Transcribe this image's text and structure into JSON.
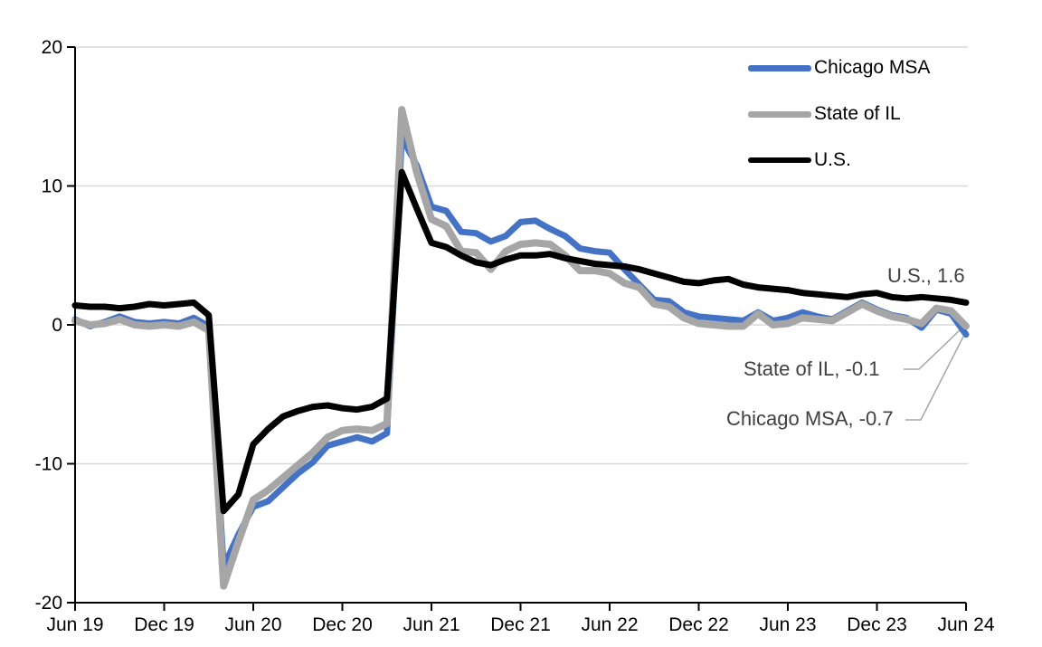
{
  "chart_data": {
    "type": "line",
    "title": "",
    "xlabel": "",
    "ylabel": "",
    "ylim": [
      -20,
      20
    ],
    "y_ticks": [
      20,
      10,
      0,
      -10,
      -20
    ],
    "x_tick_labels": [
      "Jun 19",
      "Dec 19",
      "Jun 20",
      "Dec 20",
      "Jun 21",
      "Dec 21",
      "Jun 22",
      "Dec 22",
      "Jun 23",
      "Dec 23",
      "Jun 24"
    ],
    "grid": "horizontal",
    "gridline_color": "#D9D9D9",
    "axis_color": "#000000",
    "legend_position": "top-right-inside",
    "months": [
      "Jun 19",
      "Jul 19",
      "Aug 19",
      "Sep 19",
      "Oct 19",
      "Nov 19",
      "Dec 19",
      "Jan 20",
      "Feb 20",
      "Mar 20",
      "Apr 20",
      "May 20",
      "Jun 20",
      "Jul 20",
      "Aug 20",
      "Sep 20",
      "Oct 20",
      "Nov 20",
      "Dec 20",
      "Jan 21",
      "Feb 21",
      "Mar 21",
      "Apr 21",
      "May 21",
      "Jun 21",
      "Jul 21",
      "Aug 21",
      "Sep 21",
      "Oct 21",
      "Nov 21",
      "Dec 21",
      "Jan 22",
      "Feb 22",
      "Mar 22",
      "Apr 22",
      "May 22",
      "Jun 22",
      "Jul 22",
      "Aug 22",
      "Sep 22",
      "Oct 22",
      "Nov 22",
      "Dec 22",
      "Jan 23",
      "Feb 23",
      "Mar 23",
      "Apr 23",
      "May 23",
      "Jun 23",
      "Jul 23",
      "Aug 23",
      "Sep 23",
      "Oct 23",
      "Nov 23",
      "Dec 23",
      "Jan 24",
      "Feb 24",
      "Mar 24",
      "Apr 24",
      "May 24",
      "Jun 24"
    ],
    "series": [
      {
        "name": "Chicago MSA",
        "color": "#4472C4",
        "stroke_width": 7,
        "values": [
          0.4,
          -0.1,
          0.2,
          0.6,
          0.2,
          0.1,
          0.2,
          0.1,
          0.5,
          -0.1,
          -17.4,
          -15.1,
          -13.1,
          -12.7,
          -11.7,
          -10.7,
          -9.9,
          -8.7,
          -8.4,
          -8.1,
          -8.4,
          -7.8,
          13.5,
          11.5,
          8.5,
          8.2,
          6.7,
          6.6,
          6.0,
          6.4,
          7.4,
          7.5,
          6.9,
          6.4,
          5.5,
          5.3,
          5.2,
          4.0,
          2.9,
          1.8,
          1.7,
          0.9,
          0.6,
          0.5,
          0.4,
          0.3,
          0.9,
          0.3,
          0.5,
          0.9,
          0.6,
          0.4,
          1.0,
          1.6,
          1.1,
          0.7,
          0.5,
          -0.2,
          1.1,
          0.8,
          -0.7
        ]
      },
      {
        "name": "State of IL",
        "color": "#A6A6A6",
        "stroke_width": 8,
        "values": [
          0.3,
          0.0,
          0.1,
          0.4,
          0.0,
          -0.1,
          0.0,
          -0.1,
          0.2,
          -0.4,
          -18.8,
          -15.6,
          -12.6,
          -11.9,
          -11.0,
          -10.1,
          -9.2,
          -8.1,
          -7.6,
          -7.5,
          -7.6,
          -7.1,
          15.5,
          11.0,
          7.6,
          7.1,
          5.3,
          5.2,
          4.0,
          5.3,
          5.8,
          5.9,
          5.8,
          5.0,
          3.9,
          3.9,
          3.7,
          3.0,
          2.7,
          1.5,
          1.3,
          0.5,
          0.1,
          0.0,
          -0.1,
          -0.1,
          0.8,
          0.0,
          0.1,
          0.5,
          0.4,
          0.3,
          0.9,
          1.5,
          1.0,
          0.6,
          0.4,
          0.1,
          1.2,
          1.0,
          -0.1
        ]
      },
      {
        "name": "U.S.",
        "color": "#000000",
        "stroke_width": 7,
        "values": [
          1.4,
          1.3,
          1.3,
          1.2,
          1.3,
          1.5,
          1.4,
          1.5,
          1.6,
          0.7,
          -13.4,
          -12.2,
          -8.6,
          -7.5,
          -6.6,
          -6.2,
          -5.9,
          -5.8,
          -6.0,
          -6.1,
          -5.9,
          -5.3,
          11.0,
          8.4,
          5.9,
          5.6,
          5.0,
          4.5,
          4.3,
          4.7,
          5.0,
          5.0,
          5.1,
          4.8,
          4.6,
          4.4,
          4.3,
          4.2,
          4.0,
          3.7,
          3.4,
          3.1,
          3.0,
          3.2,
          3.3,
          2.9,
          2.7,
          2.6,
          2.5,
          2.3,
          2.2,
          2.1,
          2.0,
          2.2,
          2.3,
          2.0,
          1.9,
          2.0,
          1.9,
          1.8,
          1.6
        ]
      }
    ],
    "annotations": [
      {
        "series": "U.S.",
        "value": 1.6,
        "label": "U.S., 1.6"
      },
      {
        "series": "State of IL",
        "value": -0.1,
        "label": "State of IL, -0.1"
      },
      {
        "series": "Chicago MSA",
        "value": -0.7,
        "label": "Chicago MSA, -0.7"
      }
    ],
    "annotation_text_color": "#404040",
    "leader_line_color": "#A6A6A6"
  }
}
